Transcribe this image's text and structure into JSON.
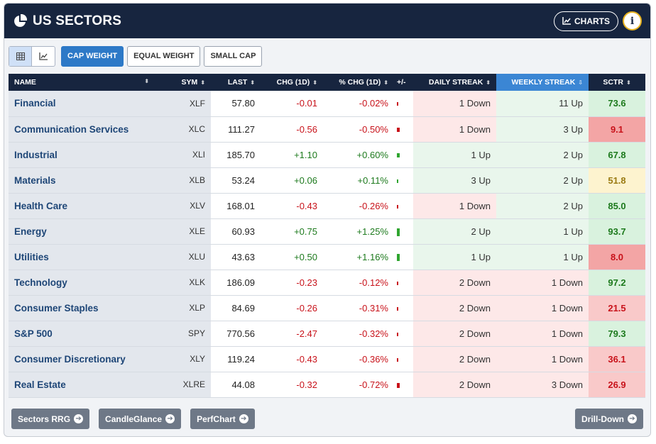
{
  "header": {
    "title": "US SECTORS",
    "charts_label": "CHARTS",
    "info_label": "i"
  },
  "toolbar": {
    "options": [
      "CAP WEIGHT",
      "EQUAL WEIGHT",
      "SMALL CAP"
    ],
    "active": "CAP WEIGHT"
  },
  "columns": {
    "name": "NAME",
    "sym": "SYM",
    "last": "LAST",
    "chg": "CHG (1D)",
    "pct": "% CHG (1D)",
    "bar": "+/-",
    "daily": "DAILY STREAK",
    "weekly": "WEEKLY STREAK",
    "sctr": "SCTR"
  },
  "colors": {
    "header_bg": "#17253f",
    "active_blue": "#2d79c7",
    "neg": "#c8121a",
    "pos": "#1d7a1d",
    "sctr_high": "#d9f2de",
    "sctr_mid": "#fdf3cf",
    "sctr_low": "#f9c9c9",
    "sctr_vlow": "#f3a5a5"
  },
  "rows": [
    {
      "name": "Financial",
      "sym": "XLF",
      "last": "57.80",
      "chg": "-0.01",
      "pct": "-0.02%",
      "dir": "neg",
      "mag": 0.15,
      "daily": "1 Down",
      "daily_dir": "down",
      "weekly": "11 Up",
      "weekly_dir": "up",
      "sctr": "73.6",
      "sctr_level": "high"
    },
    {
      "name": "Communication Services",
      "sym": "XLC",
      "last": "111.27",
      "chg": "-0.56",
      "pct": "-0.50%",
      "dir": "neg",
      "mag": 0.55,
      "daily": "1 Down",
      "daily_dir": "down",
      "weekly": "3 Up",
      "weekly_dir": "up",
      "sctr": "9.1",
      "sctr_level": "vlow"
    },
    {
      "name": "Industrial",
      "sym": "XLI",
      "last": "185.70",
      "chg": "+1.10",
      "pct": "+0.60%",
      "dir": "pos",
      "mag": 0.55,
      "daily": "1 Up",
      "daily_dir": "up",
      "weekly": "2 Up",
      "weekly_dir": "up",
      "sctr": "67.8",
      "sctr_level": "high"
    },
    {
      "name": "Materials",
      "sym": "XLB",
      "last": "53.24",
      "chg": "+0.06",
      "pct": "+0.11%",
      "dir": "pos",
      "mag": 0.2,
      "daily": "3 Up",
      "daily_dir": "up",
      "weekly": "2 Up",
      "weekly_dir": "up",
      "sctr": "51.8",
      "sctr_level": "mid"
    },
    {
      "name": "Health Care",
      "sym": "XLV",
      "last": "168.01",
      "chg": "-0.43",
      "pct": "-0.26%",
      "dir": "neg",
      "mag": 0.3,
      "daily": "1 Down",
      "daily_dir": "down",
      "weekly": "2 Up",
      "weekly_dir": "up",
      "sctr": "85.0",
      "sctr_level": "high"
    },
    {
      "name": "Energy",
      "sym": "XLE",
      "last": "60.93",
      "chg": "+0.75",
      "pct": "+1.25%",
      "dir": "pos",
      "mag": 1.0,
      "daily": "2 Up",
      "daily_dir": "up",
      "weekly": "1 Up",
      "weekly_dir": "up",
      "sctr": "93.7",
      "sctr_level": "high"
    },
    {
      "name": "Utilities",
      "sym": "XLU",
      "last": "43.63",
      "chg": "+0.50",
      "pct": "+1.16%",
      "dir": "pos",
      "mag": 0.95,
      "daily": "1 Up",
      "daily_dir": "up",
      "weekly": "1 Up",
      "weekly_dir": "up",
      "sctr": "8.0",
      "sctr_level": "vlow"
    },
    {
      "name": "Technology",
      "sym": "XLK",
      "last": "186.09",
      "chg": "-0.23",
      "pct": "-0.12%",
      "dir": "neg",
      "mag": 0.2,
      "daily": "2 Down",
      "daily_dir": "down",
      "weekly": "1 Down",
      "weekly_dir": "down",
      "sctr": "97.2",
      "sctr_level": "high"
    },
    {
      "name": "Consumer Staples",
      "sym": "XLP",
      "last": "84.69",
      "chg": "-0.26",
      "pct": "-0.31%",
      "dir": "neg",
      "mag": 0.3,
      "daily": "2 Down",
      "daily_dir": "down",
      "weekly": "1 Down",
      "weekly_dir": "down",
      "sctr": "21.5",
      "sctr_level": "low"
    },
    {
      "name": "S&P 500",
      "sym": "SPY",
      "last": "770.56",
      "chg": "-2.47",
      "pct": "-0.32%",
      "dir": "neg",
      "mag": 0.3,
      "daily": "2 Down",
      "daily_dir": "down",
      "weekly": "1 Down",
      "weekly_dir": "down",
      "sctr": "79.3",
      "sctr_level": "high"
    },
    {
      "name": "Consumer Discretionary",
      "sym": "XLY",
      "last": "119.24",
      "chg": "-0.43",
      "pct": "-0.36%",
      "dir": "neg",
      "mag": 0.35,
      "daily": "2 Down",
      "daily_dir": "down",
      "weekly": "1 Down",
      "weekly_dir": "down",
      "sctr": "36.1",
      "sctr_level": "low"
    },
    {
      "name": "Real Estate",
      "sym": "XLRE",
      "last": "44.08",
      "chg": "-0.32",
      "pct": "-0.72%",
      "dir": "neg",
      "mag": 0.65,
      "daily": "2 Down",
      "daily_dir": "down",
      "weekly": "3 Down",
      "weekly_dir": "down",
      "sctr": "26.9",
      "sctr_level": "low"
    }
  ],
  "footer": {
    "buttons": [
      "Sectors RRG",
      "CandleGlance",
      "PerfChart"
    ],
    "right_button": "Drill-Down"
  }
}
